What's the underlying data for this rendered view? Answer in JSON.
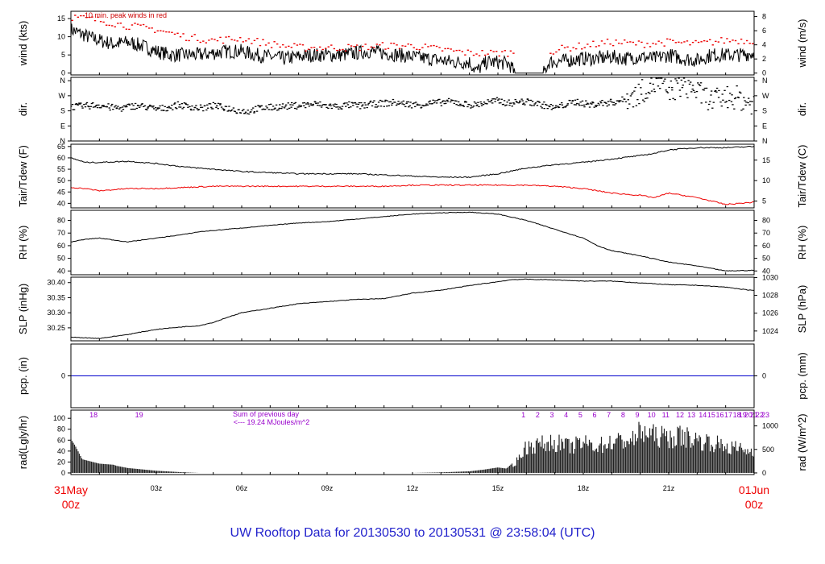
{
  "footer": {
    "title": "UW Rooftop Data for 20130530  to  20130531 @ 23:58:04  (UTC)"
  },
  "time_axis": {
    "start_day": "31May",
    "start_hour": "00z",
    "end_day": "01Jun",
    "end_hour": "00z",
    "hour_ticks": [
      "03z",
      "06z",
      "09z",
      "12z",
      "15z",
      "18z",
      "21z"
    ],
    "hour_tick_values": [
      3,
      6,
      9,
      12,
      15,
      18,
      21
    ],
    "range": [
      0,
      24
    ]
  },
  "colors": {
    "frame": "#000000",
    "black_series": "#000000",
    "red_series": "#ee0000",
    "blue_series": "#0000cc",
    "purple_text": "#9900cc",
    "footer_text": "#2222cc"
  },
  "chart_data": [
    {
      "id": "wind",
      "type": "line",
      "ylabel_left": "wind (kts)",
      "ylabel_right": "wind (m/s)",
      "left_ticks": [
        "0",
        "5",
        "10",
        "15"
      ],
      "left_tick_values": [
        0,
        5,
        10,
        15
      ],
      "right_ticks": [
        "0",
        "2",
        "4",
        "6",
        "8"
      ],
      "right_tick_values": [
        0,
        2,
        4,
        6,
        8
      ],
      "ylim": [
        -0.5,
        17
      ],
      "right_ylim": [
        -0.26,
        8.75
      ],
      "annotation": "10 min. peak winds in red",
      "series": [
        {
          "color": "#000000",
          "x": [
            0,
            0.3,
            0.6,
            1,
            1.5,
            2,
            2.5,
            3,
            3.5,
            4,
            4.5,
            5,
            5.5,
            6,
            6.5,
            7,
            7.5,
            8,
            8.5,
            9,
            9.5,
            10,
            10.5,
            11,
            11.5,
            12,
            12.5,
            13,
            13.5,
            14,
            14.25,
            14.6,
            15,
            15.4,
            15.6,
            16.6,
            16.8,
            17.5,
            18,
            18.5,
            19,
            19.5,
            20,
            20.5,
            21,
            21.5,
            22,
            22.5,
            23,
            23.5,
            24
          ],
          "y": [
            12,
            11,
            10,
            9,
            8,
            8.5,
            7.5,
            6,
            5,
            5,
            5,
            5.5,
            6,
            6,
            5,
            4.5,
            4,
            4.5,
            5,
            5,
            5,
            5.5,
            6,
            5.5,
            5,
            4.5,
            4,
            3.5,
            3,
            3,
            0.5,
            3,
            3,
            2.5,
            0,
            0,
            3,
            3.5,
            4,
            4,
            4.5,
            4,
            4.5,
            4,
            5,
            4,
            3.5,
            5,
            5,
            5,
            5.5
          ]
        },
        {
          "color": "#ee0000",
          "x": [
            0,
            1,
            2,
            3,
            4,
            5,
            6,
            7,
            8,
            9,
            10,
            11,
            12,
            13,
            14,
            15,
            16.8,
            17.5,
            18,
            19,
            20,
            21,
            22,
            23,
            24
          ],
          "y": [
            15.5,
            14.5,
            13,
            12,
            10,
            9,
            9.5,
            8,
            7,
            7,
            7,
            7.5,
            7.5,
            6.5,
            5.5,
            5.5,
            6,
            7,
            7.5,
            8.5,
            8,
            8.5,
            8,
            9,
            9
          ]
        }
      ]
    },
    {
      "id": "dir",
      "type": "scatter",
      "ylabel_left": "dir.",
      "ylabel_right": "dir.",
      "left_ticks": [
        "N",
        "E",
        "S",
        "W",
        "N"
      ],
      "left_tick_values": [
        0,
        90,
        180,
        270,
        360
      ],
      "right_ticks": [
        "N",
        "E",
        "S",
        "W",
        "N"
      ],
      "right_tick_values": [
        0,
        90,
        180,
        270,
        360
      ],
      "ylim": [
        0,
        380
      ],
      "series": [
        {
          "color": "#000000",
          "x": [
            0.2,
            0.6,
            1,
            1.4,
            1.8,
            2.2,
            2.6,
            3,
            3.4,
            3.8,
            4.2,
            4.6,
            5,
            5.4,
            5.8,
            6.2,
            6.6,
            7,
            7.4,
            7.8,
            8.2,
            8.6,
            9,
            9.4,
            9.8,
            10.2,
            10.6,
            11,
            11.4,
            11.8,
            12.2,
            12.6,
            13,
            13.4,
            13.8,
            14.2,
            14.6,
            15,
            15.4,
            15.8,
            16.2,
            16.6,
            17,
            17.4,
            17.8,
            18.2,
            18.6,
            19,
            19.4,
            19.8,
            20.2,
            20.6,
            21,
            21.4,
            21.8,
            22.2,
            22.6,
            23,
            23.4,
            23.8
          ],
          "y": [
            205,
            210,
            215,
            200,
            195,
            210,
            205,
            190,
            200,
            215,
            205,
            195,
            210,
            200,
            185,
            175,
            195,
            200,
            205,
            210,
            215,
            220,
            210,
            205,
            215,
            210,
            220,
            225,
            230,
            220,
            215,
            225,
            230,
            235,
            220,
            215,
            230,
            240,
            225,
            235,
            230,
            215,
            195,
            220,
            235,
            215,
            225,
            230,
            245,
            270,
            310,
            350,
            290,
            330,
            320,
            270,
            240,
            265,
            260,
            230
          ]
        }
      ]
    },
    {
      "id": "temp",
      "type": "line",
      "ylabel_left": "Tair/Tdew (F)",
      "ylabel_right": "Tair/Tdew (C)",
      "left_ticks": [
        "40",
        "45",
        "50",
        "55",
        "60",
        "65"
      ],
      "left_tick_values": [
        40,
        45,
        50,
        55,
        60,
        65
      ],
      "right_ticks": [
        "5",
        "10",
        "15"
      ],
      "right_tick_values": [
        5,
        10,
        15
      ],
      "ylim": [
        38,
        66
      ],
      "right_ylim": [
        3.33,
        18.89
      ],
      "series": [
        {
          "color": "#000000",
          "x": [
            0,
            0.5,
            1,
            2,
            3,
            4,
            5,
            6,
            7,
            8,
            9,
            10,
            11,
            12,
            13,
            14,
            15,
            16,
            17,
            18,
            19,
            20,
            20.5,
            21,
            22,
            23,
            24
          ],
          "y": [
            60,
            58,
            58,
            58.5,
            57.5,
            56,
            55,
            54,
            53.5,
            53,
            53,
            53,
            52.5,
            52,
            51.5,
            51.5,
            53,
            55.5,
            57,
            58,
            59.5,
            61,
            62,
            63.5,
            64.5,
            64.5,
            65
          ]
        },
        {
          "color": "#ee0000",
          "x": [
            0,
            0.5,
            1,
            2,
            3,
            4,
            5,
            6,
            7,
            8,
            9,
            10,
            11,
            12,
            13,
            14,
            15,
            16,
            17,
            18,
            19,
            20,
            20.5,
            21,
            22,
            23,
            24
          ],
          "y": [
            47,
            46.5,
            45.5,
            46.5,
            46.5,
            47,
            47.5,
            47.5,
            47.5,
            47.5,
            47.5,
            47.5,
            47.5,
            48,
            48,
            48,
            48,
            48,
            47.5,
            46.5,
            44.5,
            43.5,
            42.5,
            44.5,
            42.5,
            39.5,
            40.5
          ]
        }
      ]
    },
    {
      "id": "rh",
      "type": "line",
      "ylabel_left": "RH (%)",
      "ylabel_right": "RH (%)",
      "left_ticks": [
        "40",
        "50",
        "60",
        "70",
        "80"
      ],
      "left_tick_values": [
        40,
        50,
        60,
        70,
        80
      ],
      "right_ticks": [
        "40",
        "50",
        "60",
        "70",
        "80"
      ],
      "right_tick_values": [
        40,
        50,
        60,
        70,
        80
      ],
      "ylim": [
        37,
        88
      ],
      "series": [
        {
          "color": "#000000",
          "x": [
            0,
            0.5,
            1,
            2,
            3,
            4,
            4.5,
            5,
            6,
            7,
            8,
            9,
            10,
            11,
            12,
            13,
            14,
            15,
            16,
            17,
            18,
            18.5,
            19,
            20,
            21,
            22,
            23,
            24
          ],
          "y": [
            63,
            65,
            66,
            63,
            66,
            69,
            71,
            72,
            74,
            76,
            78,
            79,
            81,
            83,
            85,
            86,
            86.5,
            85,
            80,
            73,
            66,
            60,
            56,
            52,
            47,
            44,
            40,
            40.5
          ]
        }
      ]
    },
    {
      "id": "slp",
      "type": "line",
      "ylabel_left": "SLP (inHg)",
      "ylabel_right": "SLP (hPa)",
      "left_ticks": [
        "30.25",
        "30.30",
        "30.35",
        "30.40"
      ],
      "left_tick_values": [
        30.25,
        30.3,
        30.35,
        30.4
      ],
      "right_ticks": [
        "1024",
        "1026",
        "1028",
        "1030"
      ],
      "right_tick_values": [
        1024,
        1026,
        1028,
        1030
      ],
      "ylim": [
        30.207,
        30.418
      ],
      "right_ylim": [
        1022.9,
        1030.04
      ],
      "series": [
        {
          "color": "#000000",
          "x": [
            0,
            1,
            2,
            3,
            4,
            4.5,
            5,
            5.5,
            6,
            7,
            8,
            9,
            10,
            11,
            12,
            13,
            14,
            15,
            15.5,
            16,
            17,
            18,
            19,
            20,
            21,
            22,
            23,
            24
          ],
          "y": [
            30.219,
            30.215,
            30.228,
            30.245,
            30.254,
            30.257,
            30.268,
            30.285,
            30.3,
            30.315,
            30.33,
            30.337,
            30.344,
            30.347,
            30.365,
            30.375,
            30.39,
            30.403,
            30.41,
            30.411,
            30.409,
            30.405,
            30.405,
            30.399,
            30.393,
            30.391,
            30.385,
            30.373
          ]
        }
      ]
    },
    {
      "id": "pcp",
      "type": "line",
      "ylabel_left": "pcp. (in)",
      "ylabel_right": "pcp. (mm)",
      "left_ticks": [
        "0"
      ],
      "left_tick_values": [
        0
      ],
      "right_ticks": [
        "0"
      ],
      "right_tick_values": [
        0
      ],
      "ylim": [
        -1,
        1
      ],
      "series": [
        {
          "color": "#0000cc",
          "x": [
            0,
            24
          ],
          "y": [
            0,
            0
          ]
        }
      ]
    },
    {
      "id": "rad",
      "type": "area",
      "ylabel_left": "rad(Lgly/hr)",
      "ylabel_right": "rad (W/m^2)",
      "left_ticks": [
        "0",
        "20",
        "40",
        "60",
        "80",
        "100"
      ],
      "left_tick_values": [
        0,
        20,
        40,
        60,
        80,
        100
      ],
      "right_ticks": [
        "0",
        "500",
        "1000"
      ],
      "right_tick_values": [
        0,
        500,
        1000
      ],
      "ylim": [
        -3,
        115
      ],
      "right_ylim": [
        -35,
        1336
      ],
      "annotations": [
        "Sum of previous day",
        "<--- 19.24 MJoules/m^2"
      ],
      "hour_labels": [
        "18",
        "19",
        "1",
        "2",
        "3",
        "4",
        "5",
        "6",
        "7",
        "8",
        "9",
        "10",
        "11",
        "12",
        "13",
        "14",
        "15",
        "16",
        "17",
        "18",
        "19",
        "20",
        "21",
        "22",
        "23"
      ],
      "hour_label_values": [
        0.4,
        2.0,
        15.5,
        16.0,
        16.5,
        17.0,
        17.5,
        18.0,
        18.5,
        19.0,
        19.5,
        20.0,
        20.5,
        21.0,
        21.4,
        21.8,
        22.1,
        22.4,
        22.7,
        23.0,
        23.2,
        23.4,
        23.6,
        23.8,
        24.0
      ],
      "series": [
        {
          "color": "#222222",
          "x": [
            0,
            0.15,
            0.4,
            1,
            1.5,
            1.6,
            2,
            3,
            4,
            4.5,
            5,
            10,
            12,
            13,
            14,
            14.5,
            15,
            15.3,
            15.6,
            16,
            16.5,
            17,
            17.5,
            18,
            18.5,
            19,
            19.5,
            19.8,
            20,
            20.5,
            21,
            21.5,
            22,
            22.5,
            23,
            23.5,
            24
          ],
          "y": [
            62,
            50,
            25,
            17,
            15,
            13,
            9,
            4,
            1,
            0,
            0,
            0,
            0,
            1,
            3,
            6,
            10,
            8,
            22,
            60,
            65,
            70,
            60,
            68,
            62,
            70,
            75,
            75,
            95,
            85,
            80,
            85,
            75,
            70,
            60,
            55,
            47
          ]
        }
      ]
    }
  ]
}
